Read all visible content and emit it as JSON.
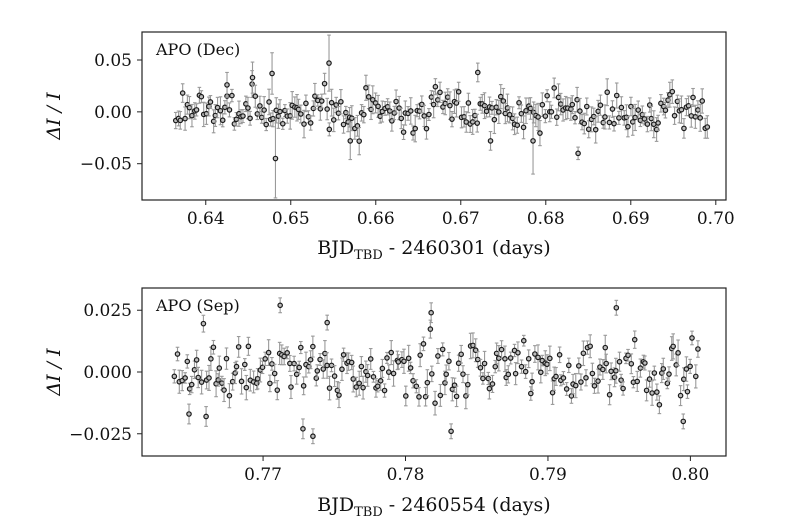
{
  "chart_data": [
    {
      "type": "scatter",
      "title": "APO (Dec)",
      "xlabel_main": "BJD",
      "xlabel_sub": "TBD",
      "xlabel_rest": " - 2460301 (days)",
      "ylabel": "ΔI / I",
      "xlim": [
        0.6325,
        0.7012
      ],
      "ylim": [
        -0.085,
        0.077
      ],
      "xticks": [
        0.64,
        0.65,
        0.66,
        0.67,
        0.68,
        0.69,
        0.7
      ],
      "xtick_labels": [
        "0.64",
        "0.65",
        "0.66",
        "0.67",
        "0.68",
        "0.69",
        "0.70"
      ],
      "yticks": [
        0.05,
        0.0,
        -0.05
      ],
      "ytick_labels": [
        "0.05",
        "0.00",
        "−0.05"
      ],
      "seed": 17,
      "n_points": 230,
      "x_range": [
        0.6365,
        0.699
      ],
      "scatter_sd": 0.011,
      "err_median": 0.009,
      "highlights": [
        {
          "x": 0.6545,
          "y": 0.047,
          "err": 0.027
        },
        {
          "x": 0.6482,
          "y": -0.045,
          "err": 0.038
        },
        {
          "x": 0.6455,
          "y": 0.033,
          "err": 0.015
        },
        {
          "x": 0.6425,
          "y": 0.026,
          "err": 0.012
        },
        {
          "x": 0.657,
          "y": -0.028,
          "err": 0.018
        },
        {
          "x": 0.672,
          "y": 0.038,
          "err": 0.009
        },
        {
          "x": 0.6785,
          "y": -0.028,
          "err": 0.032
        },
        {
          "x": 0.6478,
          "y": 0.037,
          "err": 0.02
        },
        {
          "x": 0.6735,
          "y": -0.028,
          "err": 0.009
        },
        {
          "x": 0.6838,
          "y": -0.04,
          "err": 0.006
        }
      ]
    },
    {
      "type": "scatter",
      "title": "APO (Sep)",
      "xlabel_main": "BJD",
      "xlabel_sub": "TBD",
      "xlabel_rest": " - 2460554 (days)",
      "ylabel": "ΔI / I",
      "xlim": [
        0.7615,
        0.8025
      ],
      "ylim": [
        -0.034,
        0.034
      ],
      "xticks": [
        0.77,
        0.78,
        0.79,
        0.8
      ],
      "xtick_labels": [
        "0.77",
        "0.78",
        "0.79",
        "0.80"
      ],
      "yticks": [
        0.025,
        0.0,
        -0.025
      ],
      "ytick_labels": [
        "0.025",
        "0.000",
        "−0.025"
      ],
      "seed": 41,
      "n_points": 220,
      "x_range": [
        0.7638,
        0.8005
      ],
      "scatter_sd": 0.0075,
      "err_median": 0.0035,
      "highlights": [
        {
          "x": 0.7712,
          "y": 0.027,
          "err": 0.003
        },
        {
          "x": 0.7745,
          "y": 0.02,
          "err": 0.003
        },
        {
          "x": 0.7818,
          "y": 0.024,
          "err": 0.004
        },
        {
          "x": 0.7948,
          "y": 0.026,
          "err": 0.003
        },
        {
          "x": 0.7735,
          "y": -0.026,
          "err": 0.003
        },
        {
          "x": 0.7728,
          "y": -0.023,
          "err": 0.004
        },
        {
          "x": 0.7832,
          "y": -0.024,
          "err": 0.003
        },
        {
          "x": 0.7648,
          "y": -0.017,
          "err": 0.004
        },
        {
          "x": 0.766,
          "y": -0.018,
          "err": 0.004
        },
        {
          "x": 0.7995,
          "y": -0.02,
          "err": 0.003
        }
      ]
    }
  ]
}
